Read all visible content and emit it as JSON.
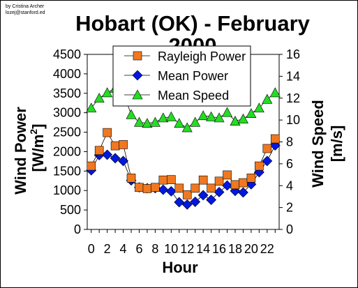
{
  "credit": {
    "line1": "by Cristina Archer",
    "line2": "lozej@stanford.ed"
  },
  "chart_data": {
    "type": "line",
    "title_line1": "Hobart (OK) - February",
    "title_line2": "2000",
    "xlabel": "Hour",
    "ylabel_left": "Wind Power",
    "ylabel_left_unit": "[W/m",
    "ylabel_left_sup": "2",
    "ylabel_left_close": "]",
    "ylabel_right": "Wind Speed",
    "ylabel_right_unit": "[m/s]",
    "x": [
      0,
      1,
      2,
      3,
      4,
      5,
      6,
      7,
      8,
      9,
      10,
      11,
      12,
      13,
      14,
      15,
      16,
      17,
      18,
      19,
      20,
      21,
      22,
      23
    ],
    "xlim": [
      -0.5,
      23.5
    ],
    "xticks": [
      0,
      2,
      4,
      6,
      8,
      10,
      12,
      14,
      16,
      18,
      20,
      22
    ],
    "ylim_left": [
      0,
      4500
    ],
    "yticks_left": [
      0,
      500,
      1000,
      1500,
      2000,
      2500,
      3000,
      3500,
      4000,
      4500
    ],
    "ylim_right": [
      0,
      16
    ],
    "yticks_right": [
      0,
      2,
      4,
      6,
      8,
      10,
      12,
      14,
      16
    ],
    "legend_position": "top-center",
    "grid": false,
    "series": [
      {
        "name": "Rayleigh Power",
        "axis": "left",
        "marker": "square",
        "color": "#f07820",
        "values": [
          1630,
          2030,
          2490,
          2150,
          2180,
          1320,
          1080,
          1050,
          1080,
          1270,
          1280,
          1060,
          890,
          1060,
          1270,
          1060,
          1240,
          1400,
          1150,
          1200,
          1320,
          1630,
          2080,
          2330
        ]
      },
      {
        "name": "Mean Power",
        "axis": "left",
        "marker": "diamond",
        "color": "#0018e0",
        "values": [
          1520,
          1910,
          1920,
          1830,
          1760,
          1260,
          1080,
          1060,
          1060,
          1020,
          980,
          700,
          640,
          710,
          880,
          760,
          960,
          1130,
          990,
          950,
          1160,
          1470,
          1760,
          2160
        ]
      },
      {
        "name": "Mean Speed",
        "axis": "right",
        "marker": "triangle",
        "color": "#22dd22",
        "values": [
          11.1,
          12.0,
          12.5,
          12.9,
          12.5,
          10.5,
          9.8,
          9.7,
          9.8,
          10.2,
          10.3,
          9.7,
          9.3,
          9.8,
          10.4,
          10.3,
          10.2,
          10.7,
          9.9,
          10.1,
          10.6,
          11.1,
          11.9,
          12.5
        ]
      }
    ]
  }
}
